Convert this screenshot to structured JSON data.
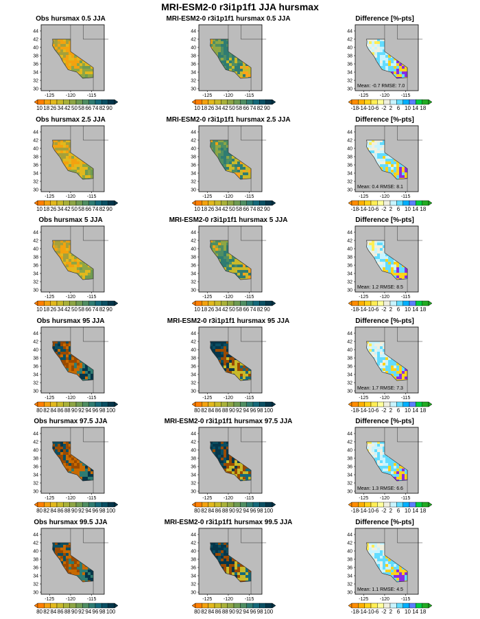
{
  "title": "MRI-ESM2-0 r3i1p1f1 JJA hursmax",
  "lat_ticks": [
    "44",
    "42",
    "40",
    "38",
    "36",
    "34",
    "32",
    "30"
  ],
  "lon_ticks": [
    "-125",
    "-120",
    "-115"
  ],
  "colorbars": {
    "low": {
      "labels": [
        "10",
        "18",
        "26",
        "34",
        "42",
        "50",
        "58",
        "66",
        "74",
        "82",
        "90"
      ],
      "colors": [
        "#ff7f00",
        "#f3a20f",
        "#e2b81d",
        "#c8b92a",
        "#a9b13a",
        "#8ea645",
        "#6f9b52",
        "#4f8e63",
        "#2f7c72",
        "#15697a",
        "#0a4f63",
        "#05364a"
      ]
    },
    "high": {
      "labels": [
        "80",
        "82",
        "84",
        "86",
        "88",
        "90",
        "92",
        "94",
        "96",
        "98",
        "100"
      ],
      "colors": [
        "#ff7f00",
        "#f3a20f",
        "#e2b81d",
        "#c8b92a",
        "#a9b13a",
        "#8ea645",
        "#6f9b52",
        "#4f8e63",
        "#2f7c72",
        "#15697a",
        "#0a4f63",
        "#05364a"
      ]
    },
    "diff": {
      "labels": [
        "-18",
        "-14",
        "-10",
        "-6",
        "-2",
        "2",
        "6",
        "10",
        "14",
        "18"
      ],
      "colors": [
        "#ff8c00",
        "#ffb000",
        "#ffd21a",
        "#ffee55",
        "#ffff9a",
        "#f0f0e0",
        "#c8f4ff",
        "#62dcff",
        "#00b0ff",
        "#5a80ff",
        "#00cc44",
        "#22aa22"
      ]
    }
  },
  "rows": [
    {
      "obs_title": "Obs hursmax 0.5 JJA",
      "mod_title": "MRI-ESM2-0 r3i1p1f1 hursmax 0.5 JJA",
      "diff_title": "Difference [%-pts]",
      "mean": "Mean: -0.7",
      "rmse": "RMSE: 7.0",
      "scale": "low"
    },
    {
      "obs_title": "Obs hursmax 2.5 JJA",
      "mod_title": "MRI-ESM2-0 r3i1p1f1 hursmax 2.5 JJA",
      "diff_title": "Difference [%-pts]",
      "mean": "Mean: 0.4",
      "rmse": "RMSE: 8.1",
      "scale": "low"
    },
    {
      "obs_title": "Obs hursmax 5 JJA",
      "mod_title": "MRI-ESM2-0 r3i1p1f1 hursmax 5 JJA",
      "diff_title": "Difference [%-pts]",
      "mean": "Mean: 1.2",
      "rmse": "RMSE: 8.5",
      "scale": "low"
    },
    {
      "obs_title": "Obs hursmax 95 JJA",
      "mod_title": "MRI-ESM2-0 r3i1p1f1 hursmax 95 JJA",
      "diff_title": "Difference [%-pts]",
      "mean": "Mean: 1.7",
      "rmse": "RMSE: 7.3",
      "scale": "high"
    },
    {
      "obs_title": "Obs hursmax 97.5 JJA",
      "mod_title": "MRI-ESM2-0 r3i1p1f1 hursmax 97.5 JJA",
      "diff_title": "Difference [%-pts]",
      "mean": "Mean: 1.3",
      "rmse": "RMSE: 6.6",
      "scale": "high"
    },
    {
      "obs_title": "Obs hursmax 99.5 JJA",
      "mod_title": "MRI-ESM2-0 r3i1p1f1 hursmax 99.5 JJA",
      "diff_title": "Difference [%-pts]",
      "mean": "Mean: 1.1",
      "rmse": "RMSE: 4.5",
      "scale": "high"
    }
  ]
}
